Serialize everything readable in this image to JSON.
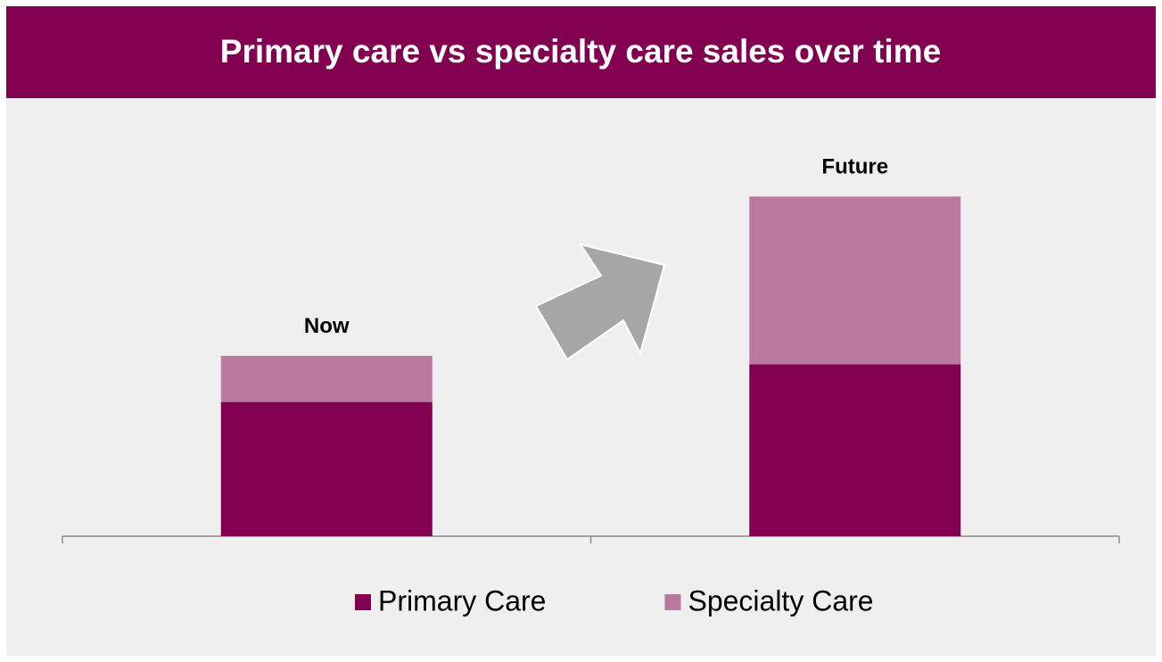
{
  "chart_data": {
    "type": "stacked_bar",
    "title": "Primary care vs specialty care sales over time",
    "categories": [
      "Now",
      "Future"
    ],
    "series": [
      {
        "name": "Primary Care",
        "color": "#820050",
        "values": [
          32,
          41
        ]
      },
      {
        "name": "Specialty Care",
        "color": "#b9799f",
        "values": [
          11,
          40
        ]
      }
    ],
    "ylim": [
      0,
      100
    ]
  }
}
